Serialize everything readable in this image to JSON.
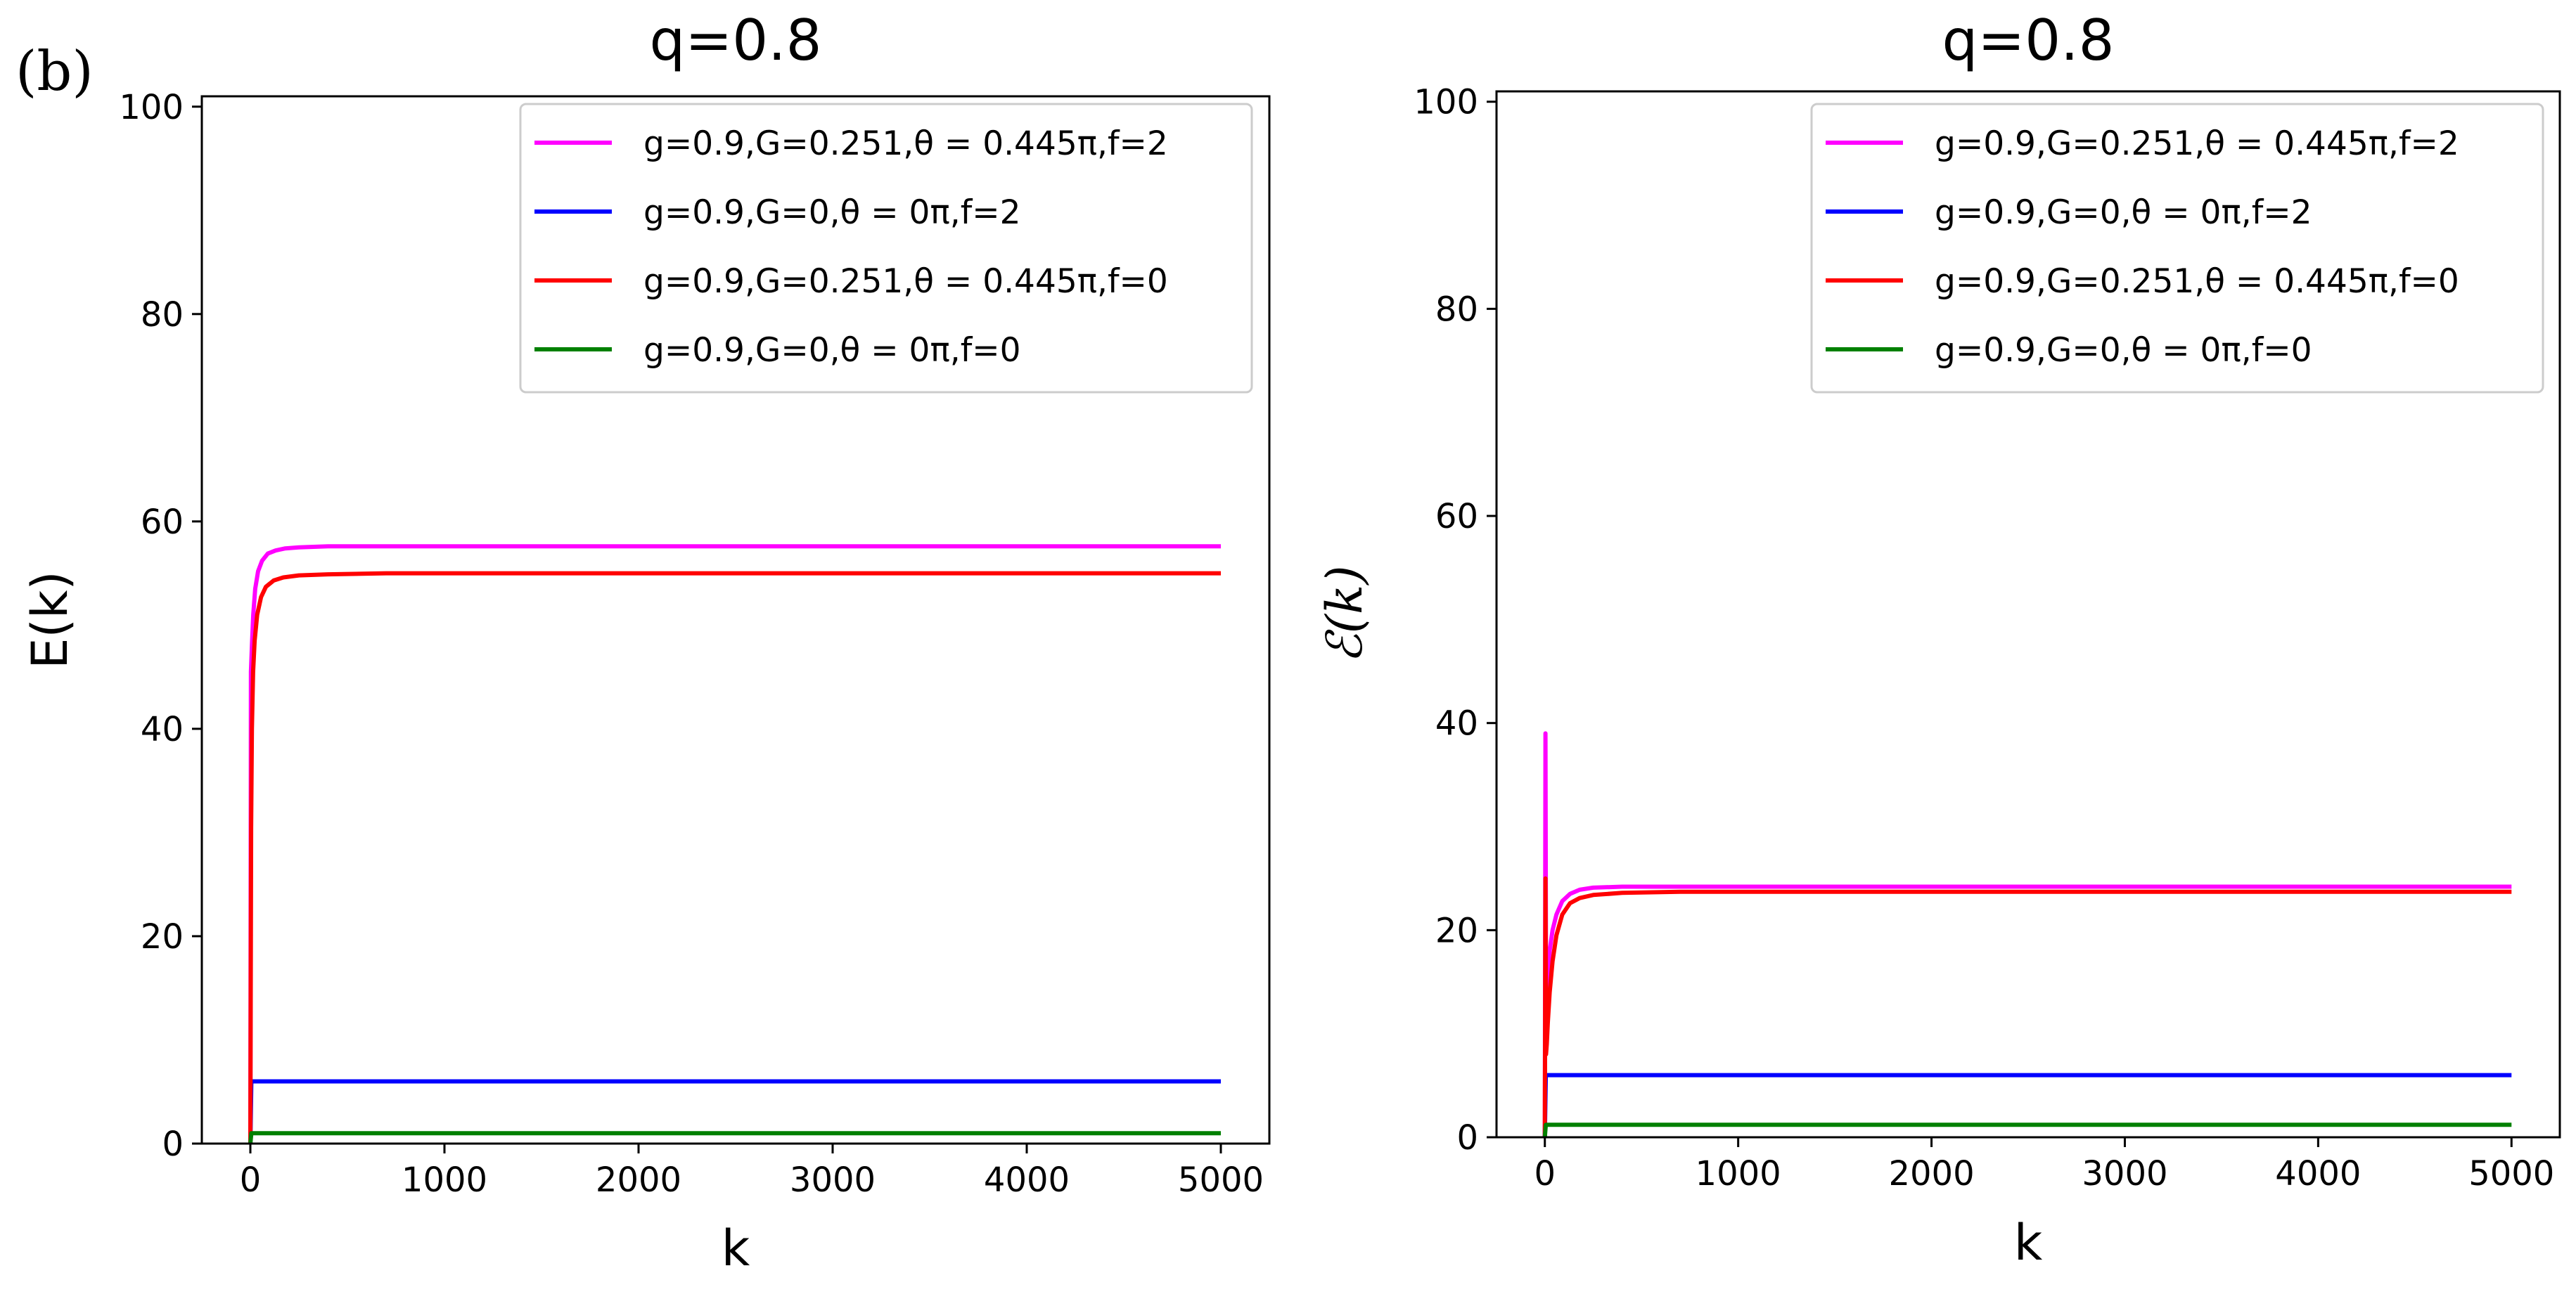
{
  "panel_tag": "(b)",
  "chart_data": [
    {
      "type": "line",
      "title": "q=0.8",
      "xlabel": "k",
      "ylabel": "E(k)",
      "xlim": [
        -250,
        5250
      ],
      "ylim": [
        0,
        101
      ],
      "xticks": [
        0,
        1000,
        2000,
        3000,
        4000,
        5000
      ],
      "yticks": [
        0,
        20,
        40,
        60,
        80,
        100
      ],
      "legend_position": "top-right",
      "series": [
        {
          "name": "g=0.9,G=0.251,θ = 0.445π,f=2",
          "color": "#ff00ff",
          "x": [
            0,
            3,
            8,
            15,
            25,
            40,
            60,
            90,
            130,
            180,
            250,
            400,
            700,
            1500,
            3000,
            5000
          ],
          "y": [
            0,
            45.5,
            48,
            51,
            53.5,
            55.2,
            56.2,
            56.9,
            57.2,
            57.4,
            57.5,
            57.6,
            57.6,
            57.6,
            57.6,
            57.6
          ]
        },
        {
          "name": "g=0.9,G=0,θ = 0π,f=2",
          "color": "#0000ff",
          "x": [
            0,
            5,
            10,
            5000
          ],
          "y": [
            0,
            6,
            6,
            6
          ]
        },
        {
          "name": "g=0.9,G=0.251,θ = 0.445π,f=0",
          "color": "#ff0000",
          "x": [
            0,
            4,
            8,
            14,
            22,
            35,
            55,
            80,
            120,
            170,
            250,
            400,
            700,
            1500,
            3000,
            5000
          ],
          "y": [
            0,
            30.5,
            40,
            45.5,
            48.5,
            51,
            52.7,
            53.7,
            54.3,
            54.6,
            54.8,
            54.9,
            55,
            55,
            55,
            55
          ]
        },
        {
          "name": "g=0.9,G=0,θ = 0π,f=0",
          "color": "#008000",
          "x": [
            0,
            5,
            10,
            5000
          ],
          "y": [
            0,
            1,
            1,
            1
          ]
        }
      ]
    },
    {
      "type": "line",
      "title": "q=0.8",
      "xlabel": "k",
      "ylabel": "ℰ(k)",
      "xlim": [
        -250,
        5250
      ],
      "ylim": [
        0,
        101
      ],
      "xticks": [
        0,
        1000,
        2000,
        3000,
        4000,
        5000
      ],
      "yticks": [
        0,
        20,
        40,
        60,
        80,
        100
      ],
      "legend_position": "top-right",
      "series": [
        {
          "name": "g=0.9,G=0.251,θ = 0.445π,f=2",
          "color": "#ff00ff",
          "x": [
            0,
            3,
            6,
            10,
            15,
            25,
            40,
            60,
            90,
            130,
            180,
            250,
            400,
            700,
            1500,
            3000,
            5000
          ],
          "y": [
            0,
            39,
            15,
            14,
            16,
            18,
            20,
            21.5,
            22.8,
            23.5,
            23.9,
            24.1,
            24.2,
            24.2,
            24.2,
            24.2,
            24.2
          ]
        },
        {
          "name": "g=0.9,G=0,θ = 0π,f=2",
          "color": "#0000ff",
          "x": [
            0,
            5,
            10,
            5000
          ],
          "y": [
            0,
            6,
            6,
            6
          ]
        },
        {
          "name": "g=0.9,G=0.251,θ = 0.445π,f=0",
          "color": "#ff0000",
          "x": [
            0,
            3,
            6,
            10,
            15,
            25,
            40,
            60,
            90,
            130,
            180,
            250,
            400,
            700,
            1500,
            3000,
            5000
          ],
          "y": [
            0,
            25,
            8,
            9,
            11,
            14,
            17,
            19.5,
            21.5,
            22.6,
            23.1,
            23.4,
            23.6,
            23.7,
            23.7,
            23.7,
            23.7
          ]
        },
        {
          "name": "g=0.9,G=0,θ = 0π,f=0",
          "color": "#008000",
          "x": [
            0,
            5,
            10,
            5000
          ],
          "y": [
            0,
            1.2,
            1.2,
            1.2
          ]
        }
      ]
    }
  ]
}
